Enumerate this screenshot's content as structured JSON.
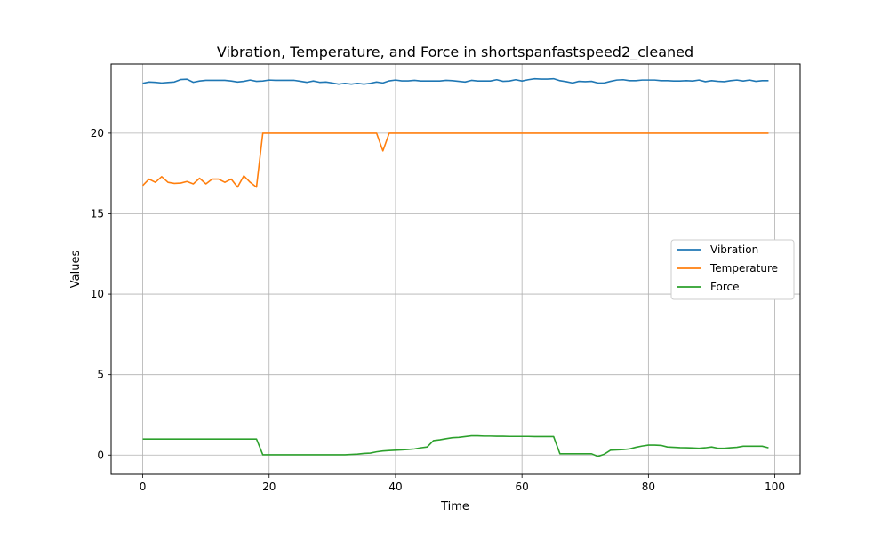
{
  "chart_data": {
    "type": "line",
    "title": "Vibration, Temperature, and Force in shortspanfastspeed2_cleaned",
    "xlabel": "Time",
    "ylabel": "Values",
    "xlim": [
      -5,
      104
    ],
    "ylim": [
      -1.2,
      24.3
    ],
    "xticks": [
      0,
      20,
      40,
      60,
      80,
      100
    ],
    "yticks": [
      0,
      5,
      10,
      15,
      20
    ],
    "grid": true,
    "legend_position": "center-right",
    "x": [
      0,
      1,
      2,
      3,
      4,
      5,
      6,
      7,
      8,
      9,
      10,
      11,
      12,
      13,
      14,
      15,
      16,
      17,
      18,
      19,
      20,
      21,
      22,
      23,
      24,
      25,
      26,
      27,
      28,
      29,
      30,
      31,
      32,
      33,
      34,
      35,
      36,
      37,
      38,
      39,
      40,
      41,
      42,
      43,
      44,
      45,
      46,
      47,
      48,
      49,
      50,
      51,
      52,
      53,
      54,
      55,
      56,
      57,
      58,
      59,
      60,
      61,
      62,
      63,
      64,
      65,
      66,
      67,
      68,
      69,
      70,
      71,
      72,
      73,
      74,
      75,
      76,
      77,
      78,
      79,
      80,
      81,
      82,
      83,
      84,
      85,
      86,
      87,
      88,
      89,
      90,
      91,
      92,
      93,
      94,
      95,
      96,
      97,
      98,
      99
    ],
    "series": [
      {
        "name": "Vibration",
        "color": "#1f77b4",
        "values": [
          23.1,
          23.18,
          23.16,
          23.12,
          23.15,
          23.18,
          23.33,
          23.35,
          23.16,
          23.24,
          23.28,
          23.28,
          23.28,
          23.28,
          23.24,
          23.18,
          23.22,
          23.3,
          23.22,
          23.24,
          23.3,
          23.28,
          23.28,
          23.28,
          23.28,
          23.22,
          23.16,
          23.24,
          23.16,
          23.18,
          23.12,
          23.05,
          23.1,
          23.05,
          23.1,
          23.05,
          23.1,
          23.18,
          23.12,
          23.25,
          23.3,
          23.25,
          23.25,
          23.28,
          23.24,
          23.24,
          23.24,
          23.24,
          23.28,
          23.26,
          23.22,
          23.18,
          23.28,
          23.24,
          23.24,
          23.24,
          23.32,
          23.22,
          23.24,
          23.32,
          23.24,
          23.32,
          23.38,
          23.36,
          23.36,
          23.38,
          23.26,
          23.2,
          23.12,
          23.22,
          23.2,
          23.22,
          23.12,
          23.12,
          23.22,
          23.3,
          23.32,
          23.26,
          23.26,
          23.3,
          23.3,
          23.3,
          23.26,
          23.26,
          23.24,
          23.24,
          23.26,
          23.24,
          23.3,
          23.2,
          23.26,
          23.22,
          23.2,
          23.26,
          23.3,
          23.24,
          23.3,
          23.22,
          23.26,
          23.26
        ]
      },
      {
        "name": "Temperature",
        "color": "#ff7f0e",
        "values": [
          16.75,
          17.15,
          16.95,
          17.3,
          16.95,
          16.88,
          16.9,
          17.0,
          16.85,
          17.2,
          16.85,
          17.15,
          17.15,
          16.95,
          17.15,
          16.65,
          17.35,
          16.95,
          16.65,
          20.0,
          20.0,
          20.0,
          20.0,
          20.0,
          20.0,
          20.0,
          20.0,
          20.0,
          20.0,
          20.0,
          20.0,
          20.0,
          20.0,
          20.0,
          20.0,
          20.0,
          20.0,
          20.0,
          18.9,
          20.0,
          20.0,
          20.0,
          20.0,
          20.0,
          20.0,
          20.0,
          20.0,
          20.0,
          20.0,
          20.0,
          20.0,
          20.0,
          20.0,
          20.0,
          20.0,
          20.0,
          20.0,
          20.0,
          20.0,
          20.0,
          20.0,
          20.0,
          20.0,
          20.0,
          20.0,
          20.0,
          20.0,
          20.0,
          20.0,
          20.0,
          20.0,
          20.0,
          20.0,
          20.0,
          20.0,
          20.0,
          20.0,
          20.0,
          20.0,
          20.0,
          20.0,
          20.0,
          20.0,
          20.0,
          20.0,
          20.0,
          20.0,
          20.0,
          20.0,
          20.0,
          20.0,
          20.0,
          20.0,
          20.0,
          20.0,
          20.0,
          20.0,
          20.0,
          20.0,
          20.0
        ]
      },
      {
        "name": "Force",
        "color": "#2ca02c",
        "values": [
          1.0,
          1.0,
          1.0,
          1.0,
          1.0,
          1.0,
          1.0,
          1.0,
          1.0,
          1.0,
          1.0,
          1.0,
          1.0,
          1.0,
          1.0,
          1.0,
          1.0,
          1.0,
          1.0,
          0.02,
          0.02,
          0.02,
          0.02,
          0.02,
          0.02,
          0.02,
          0.02,
          0.02,
          0.02,
          0.02,
          0.02,
          0.02,
          0.02,
          0.04,
          0.06,
          0.1,
          0.12,
          0.2,
          0.25,
          0.28,
          0.3,
          0.32,
          0.35,
          0.38,
          0.45,
          0.5,
          0.9,
          0.95,
          1.02,
          1.08,
          1.1,
          1.15,
          1.2,
          1.2,
          1.18,
          1.18,
          1.17,
          1.17,
          1.16,
          1.16,
          1.16,
          1.16,
          1.15,
          1.15,
          1.15,
          1.15,
          0.08,
          0.08,
          0.08,
          0.08,
          0.08,
          0.08,
          -0.08,
          0.05,
          0.3,
          0.32,
          0.34,
          0.38,
          0.48,
          0.56,
          0.62,
          0.62,
          0.6,
          0.5,
          0.48,
          0.46,
          0.45,
          0.44,
          0.42,
          0.45,
          0.5,
          0.42,
          0.42,
          0.45,
          0.48,
          0.55,
          0.55,
          0.55,
          0.55,
          0.45
        ]
      }
    ]
  }
}
